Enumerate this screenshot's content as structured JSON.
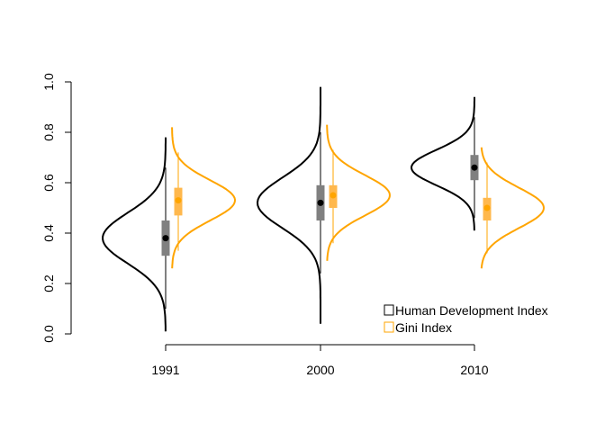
{
  "chart_data": {
    "type": "violin",
    "title": "",
    "xlabel": "",
    "ylabel": "",
    "ylim": [
      0.0,
      1.0
    ],
    "yticks": [
      "0.0",
      "0.2",
      "0.4",
      "0.6",
      "0.8",
      "1.0"
    ],
    "categories": [
      "1991",
      "2000",
      "2010"
    ],
    "grid": false,
    "legend_position": "bottom-right",
    "series": [
      {
        "name": "Human Development Index",
        "color": "#000000",
        "box_color": "#808080",
        "side": "left",
        "groups": [
          {
            "category": "1991",
            "min": 0.1,
            "q1": 0.31,
            "median": 0.38,
            "q3": 0.45,
            "max": 0.66,
            "mean": 0.38,
            "sd": 0.1,
            "dens_min": 0.01,
            "dens_max": 0.78
          },
          {
            "category": "2000",
            "min": 0.24,
            "q1": 0.45,
            "median": 0.52,
            "q3": 0.59,
            "max": 0.8,
            "mean": 0.52,
            "sd": 0.1,
            "dens_min": 0.04,
            "dens_max": 0.98
          },
          {
            "category": "2010",
            "min": 0.46,
            "q1": 0.61,
            "median": 0.66,
            "q3": 0.71,
            "max": 0.86,
            "mean": 0.66,
            "sd": 0.07,
            "dens_min": 0.41,
            "dens_max": 0.94
          }
        ]
      },
      {
        "name": "Gini Index",
        "color": "#FFA500",
        "box_color": "#FFB84D",
        "side": "right",
        "groups": [
          {
            "category": "1991",
            "min": 0.33,
            "q1": 0.47,
            "median": 0.53,
            "q3": 0.58,
            "max": 0.72,
            "mean": 0.53,
            "sd": 0.08,
            "dens_min": 0.26,
            "dens_max": 0.82
          },
          {
            "category": "2000",
            "min": 0.36,
            "q1": 0.5,
            "median": 0.55,
            "q3": 0.59,
            "max": 0.73,
            "mean": 0.55,
            "sd": 0.08,
            "dens_min": 0.29,
            "dens_max": 0.83
          },
          {
            "category": "2010",
            "min": 0.32,
            "q1": 0.45,
            "median": 0.5,
            "q3": 0.54,
            "max": 0.68,
            "mean": 0.5,
            "sd": 0.08,
            "dens_min": 0.26,
            "dens_max": 0.74
          }
        ]
      }
    ]
  }
}
